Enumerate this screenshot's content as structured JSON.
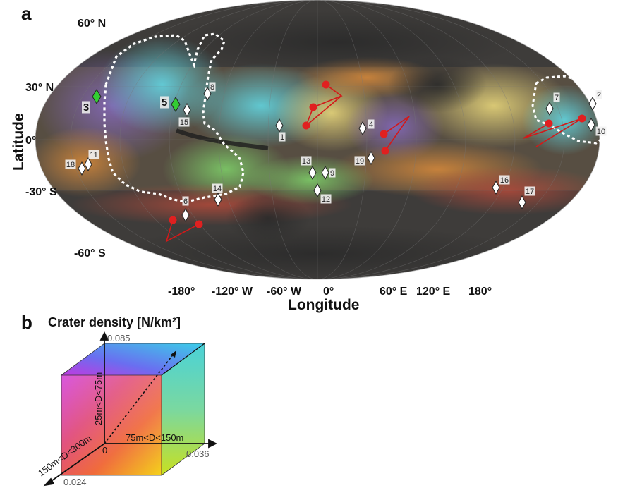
{
  "figure": {
    "panel_a_label": "a",
    "panel_b_label": "b",
    "map": {
      "lat_ticks": [
        "60° N",
        "30° N",
        "0°",
        "-30° S",
        "-60° S"
      ],
      "lon_ticks": [
        "-180°",
        "-120° W",
        "-60° W",
        "0°",
        "60° E",
        "120° E",
        "180°"
      ],
      "xlabel": "Longitude",
      "ylabel": "Latitude",
      "sites": [
        {
          "n": "1",
          "style": "small",
          "color": "white"
        },
        {
          "n": "2",
          "style": "small",
          "color": "white"
        },
        {
          "n": "3",
          "style": "big",
          "color": "green"
        },
        {
          "n": "4",
          "style": "small",
          "color": "white"
        },
        {
          "n": "5",
          "style": "big",
          "color": "green"
        },
        {
          "n": "6",
          "style": "small",
          "color": "white"
        },
        {
          "n": "7",
          "style": "small",
          "color": "white"
        },
        {
          "n": "8",
          "style": "small",
          "color": "white"
        },
        {
          "n": "9",
          "style": "small",
          "color": "white"
        },
        {
          "n": "10",
          "style": "small",
          "color": "white"
        },
        {
          "n": "11",
          "style": "small",
          "color": "white"
        },
        {
          "n": "12",
          "style": "small",
          "color": "white"
        },
        {
          "n": "13",
          "style": "small",
          "color": "white"
        },
        {
          "n": "14",
          "style": "small",
          "color": "white"
        },
        {
          "n": "15",
          "style": "small",
          "color": "white"
        },
        {
          "n": "16",
          "style": "small",
          "color": "white"
        },
        {
          "n": "17",
          "style": "small",
          "color": "white"
        },
        {
          "n": "18",
          "style": "small",
          "color": "white"
        },
        {
          "n": "19",
          "style": "small",
          "color": "white"
        }
      ],
      "marker_colors": {
        "white": "#ffffff",
        "green": "#33cc33",
        "red": "#e02020",
        "boundary": "#ffffff"
      }
    },
    "cube": {
      "title": "Crater density [N/km²]",
      "axis_vertical": "25m<D<75m",
      "axis_horizontal": "75m<D<150m",
      "axis_depth": "150m<D<300m",
      "origin": "0",
      "max_vertical": "0.085",
      "max_horizontal": "0.036",
      "max_depth": "0.024"
    }
  }
}
